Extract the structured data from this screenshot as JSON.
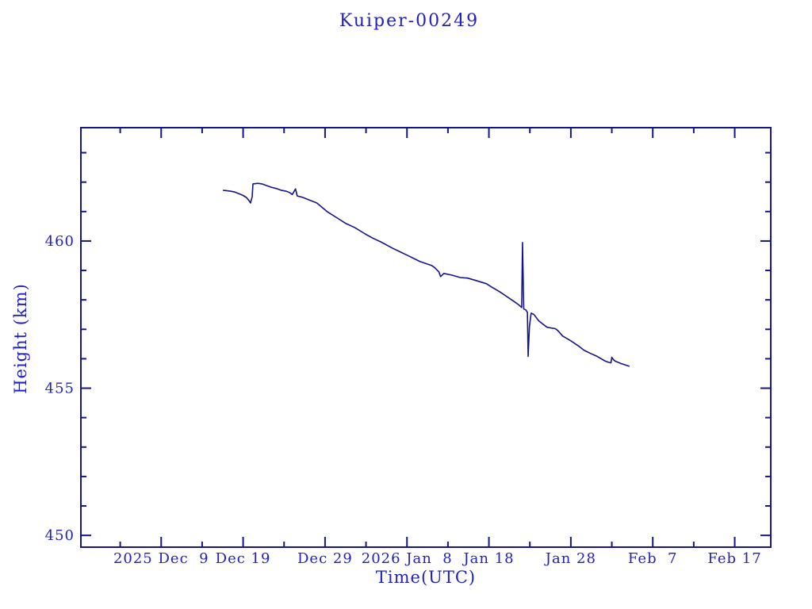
{
  "title": "Kuiper-00249",
  "colors": {
    "background": "#ffffff",
    "text": "#2121bd",
    "axis": "#15158b",
    "line": "#15158b"
  },
  "chart_data": {
    "type": "line",
    "title": "Kuiper-00249",
    "xlabel": "Time(UTC)",
    "ylabel": "Height (km)",
    "x_unit": "days since 2025-12-09 00:00 UTC",
    "xlim": [
      -9.8,
      74.4
    ],
    "ylim": [
      449.6,
      463.85
    ],
    "grid": false,
    "legend": null,
    "x_major_ticks": [
      {
        "day": 0,
        "label": "2025 Dec  9"
      },
      {
        "day": 10,
        "label": "Dec 19"
      },
      {
        "day": 20,
        "label": "Dec 29"
      },
      {
        "day": 30,
        "label": "2026 Jan  8"
      },
      {
        "day": 40,
        "label": "Jan 18"
      },
      {
        "day": 50,
        "label": "Jan 28"
      },
      {
        "day": 60,
        "label": "Feb  7"
      },
      {
        "day": 70,
        "label": "Feb 17"
      }
    ],
    "x_minor_ticks_days": [
      -5,
      5,
      15,
      25,
      35,
      45,
      55,
      65
    ],
    "y_major_ticks": [
      {
        "value": 450,
        "label": "450"
      },
      {
        "value": 455,
        "label": "455"
      },
      {
        "value": 460,
        "label": "460"
      }
    ],
    "y_minor_ticks": [
      451,
      452,
      453,
      454,
      456,
      457,
      458,
      459,
      461,
      462,
      463
    ],
    "series": [
      {
        "name": "height",
        "points": [
          [
            7.6,
            461.72
          ],
          [
            8.3,
            461.7
          ],
          [
            8.9,
            461.67
          ],
          [
            9.9,
            461.56
          ],
          [
            10.4,
            461.48
          ],
          [
            10.7,
            461.38
          ],
          [
            10.9,
            461.29
          ],
          [
            11.1,
            461.5
          ],
          [
            11.2,
            461.94
          ],
          [
            11.8,
            461.96
          ],
          [
            12.3,
            461.94
          ],
          [
            13.4,
            461.83
          ],
          [
            14.2,
            461.77
          ],
          [
            14.7,
            461.72
          ],
          [
            15.3,
            461.69
          ],
          [
            15.7,
            461.64
          ],
          [
            16.0,
            461.58
          ],
          [
            16.4,
            461.77
          ],
          [
            16.6,
            461.53
          ],
          [
            17.3,
            461.48
          ],
          [
            18.3,
            461.37
          ],
          [
            19.0,
            461.29
          ],
          [
            20.3,
            460.99
          ],
          [
            21.5,
            460.78
          ],
          [
            22.5,
            460.6
          ],
          [
            23.6,
            460.46
          ],
          [
            24.9,
            460.24
          ],
          [
            25.8,
            460.1
          ],
          [
            26.8,
            459.97
          ],
          [
            28.2,
            459.76
          ],
          [
            30.0,
            459.52
          ],
          [
            31.6,
            459.3
          ],
          [
            33.0,
            459.17
          ],
          [
            33.4,
            459.09
          ],
          [
            33.9,
            458.95
          ],
          [
            34.1,
            458.79
          ],
          [
            34.5,
            458.9
          ],
          [
            35.5,
            458.84
          ],
          [
            36.5,
            458.76
          ],
          [
            37.4,
            458.74
          ],
          [
            38.4,
            458.66
          ],
          [
            39.7,
            458.55
          ],
          [
            40.3,
            458.44
          ],
          [
            41.3,
            458.28
          ],
          [
            42.3,
            458.09
          ],
          [
            43.0,
            457.96
          ],
          [
            43.7,
            457.82
          ],
          [
            44.0,
            457.74
          ],
          [
            44.1,
            459.95
          ],
          [
            44.25,
            457.69
          ],
          [
            44.5,
            457.66
          ],
          [
            44.7,
            457.58
          ],
          [
            44.78,
            456.08
          ],
          [
            44.95,
            457.1
          ],
          [
            45.15,
            457.55
          ],
          [
            45.5,
            457.5
          ],
          [
            46.1,
            457.28
          ],
          [
            47.1,
            457.07
          ],
          [
            48.1,
            457.02
          ],
          [
            48.4,
            456.96
          ],
          [
            49.0,
            456.77
          ],
          [
            50.0,
            456.61
          ],
          [
            51.0,
            456.42
          ],
          [
            51.6,
            456.29
          ],
          [
            52.4,
            456.18
          ],
          [
            53.2,
            456.08
          ],
          [
            54.2,
            455.92
          ],
          [
            54.6,
            455.88
          ],
          [
            54.9,
            455.86
          ],
          [
            55.0,
            456.05
          ],
          [
            55.2,
            455.97
          ],
          [
            55.4,
            455.92
          ],
          [
            56.1,
            455.84
          ],
          [
            57.1,
            455.75
          ]
        ]
      }
    ]
  }
}
